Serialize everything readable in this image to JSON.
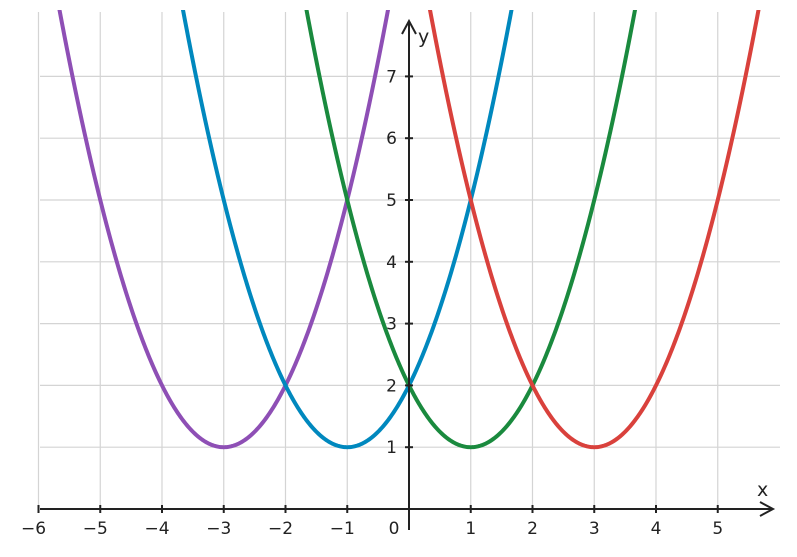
{
  "chart_data": {
    "type": "line",
    "xlabel": "x",
    "ylabel": "y",
    "xlim": [
      -6,
      5.8
    ],
    "ylim": [
      0,
      7.8
    ],
    "grid": true,
    "x_ticks": [
      {
        "value": -6,
        "label": "−6"
      },
      {
        "value": -5,
        "label": "−5"
      },
      {
        "value": -4,
        "label": "−4"
      },
      {
        "value": -3,
        "label": "−3"
      },
      {
        "value": -2,
        "label": "−2"
      },
      {
        "value": -1,
        "label": "−1"
      },
      {
        "value": 0,
        "label": "0"
      },
      {
        "value": 1,
        "label": "1"
      },
      {
        "value": 2,
        "label": "2"
      },
      {
        "value": 3,
        "label": "3"
      },
      {
        "value": 4,
        "label": "4"
      },
      {
        "value": 5,
        "label": "5"
      }
    ],
    "y_ticks": [
      {
        "value": 1,
        "label": "1"
      },
      {
        "value": 2,
        "label": "2"
      },
      {
        "value": 3,
        "label": "3"
      },
      {
        "value": 4,
        "label": "4"
      },
      {
        "value": 5,
        "label": "5"
      },
      {
        "value": 6,
        "label": "6"
      },
      {
        "value": 7,
        "label": "7"
      }
    ],
    "series": [
      {
        "color": "#8e4fb5",
        "x": [
          -6,
          -5,
          -4,
          -3,
          -2,
          -1,
          0
        ],
        "y": [
          10,
          5,
          2,
          1,
          2,
          5,
          10
        ]
      },
      {
        "color": "#0088be",
        "x": [
          -4,
          -3,
          -2,
          -1,
          0,
          1,
          2
        ],
        "y": [
          10,
          5,
          2,
          1,
          2,
          5,
          10
        ]
      },
      {
        "color": "#1a8a3e",
        "x": [
          -2,
          -1,
          0,
          1,
          2,
          3,
          4
        ],
        "y": [
          10,
          5,
          2,
          1,
          2,
          5,
          10
        ]
      },
      {
        "color": "#d9413c",
        "x": [
          0,
          1,
          2,
          3,
          4,
          5,
          6
        ],
        "y": [
          10,
          5,
          2,
          1,
          2,
          5,
          10
        ]
      }
    ]
  }
}
